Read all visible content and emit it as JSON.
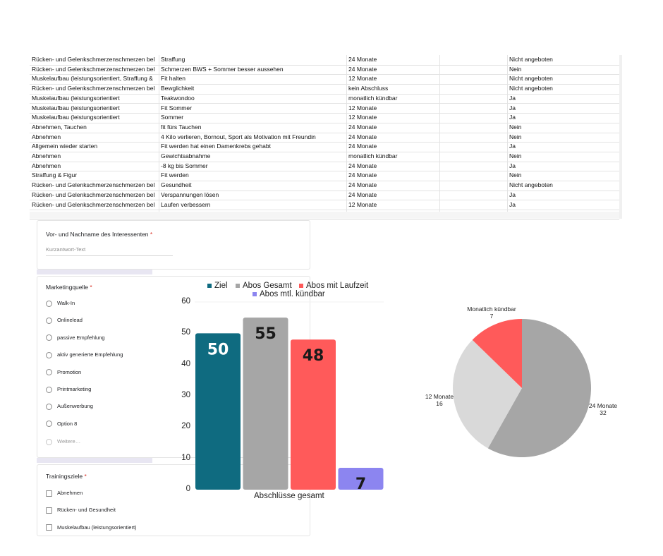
{
  "sheet": {
    "rows": [
      [
        "Rücken- und Gelenkschmerzenschmerzen bel",
        "Straffung",
        "24 Monate",
        "",
        "Nicht angeboten"
      ],
      [
        "Rücken- und Gelenkschmerzenschmerzen bel",
        "Schmerzen BWS + Sommer besser aussehen",
        "24 Monate",
        "",
        "Nein"
      ],
      [
        "Muskelaufbau (leistungsorientiert, Straffung &",
        "Fit halten",
        "12 Monate",
        "",
        "Nicht angeboten"
      ],
      [
        "Rücken- und Gelenkschmerzenschmerzen bel",
        "Bewglichkeit",
        "kein Abschluss",
        "",
        "Nicht angeboten"
      ],
      [
        "Muskelaufbau (leistungsorientiert",
        "Teakwondoo",
        "monatlich kündbar",
        "",
        "Ja"
      ],
      [
        "Muskelaufbau (leistungsorientiert",
        "Fit Sommer",
        "12 Monate",
        "",
        "Ja"
      ],
      [
        "Muskelaufbau (leistungsorientiert",
        "Sommer",
        "12 Monate",
        "",
        "Ja"
      ],
      [
        "Abnehmen, Tauchen",
        "fit fürs Tauchen",
        "24 Monate",
        "",
        "Nein"
      ],
      [
        "Abnehmen",
        "4 Kilo verlieren, Bornout, Sport als Motivation mit Freundin",
        "24 Monate",
        "",
        "Nein"
      ],
      [
        "Allgemein wieder starten",
        "Fit werden hat einen Damenkrebs gehabt",
        "24 Monate",
        "",
        "Ja"
      ],
      [
        "Abnehmen",
        "Gewichtsabnahme",
        "monatlich kündbar",
        "",
        "Nein"
      ],
      [
        "Abnehmen",
        "-8 kg bis Sommer",
        "24 Monate",
        "",
        "Ja"
      ],
      [
        "Straffung & Figur",
        "Fit werden",
        "24 Monate",
        "",
        "Nein"
      ],
      [
        "Rücken- und Gelenkschmerzenschmerzen bel",
        "Gesundheit",
        "24 Monate",
        "",
        "Nicht angeboten"
      ],
      [
        "Rücken- und Gelenkschmerzenschmerzen bel",
        "Verspannungen lösen",
        "24 Monate",
        "",
        "Ja"
      ],
      [
        "Rücken- und Gelenkschmerzenschmerzen bel",
        "Laufen verbessern",
        "12 Monate",
        "",
        "Ja"
      ]
    ]
  },
  "form": {
    "name_question": "Vor- und Nachname des Interessenten",
    "name_placeholder": "Kurzantwort-Text",
    "marketing_question": "Marketingquelle",
    "marketing_options": [
      "Walk-In",
      "Onlinelead",
      "passive Empfehlung",
      "aktiv generierte Empfehlung",
      "Promotion",
      "Printmarketing",
      "Außenwerbung",
      "Option 8"
    ],
    "marketing_more": "Weitere…",
    "training_question": "Trainingsziele",
    "training_options": [
      "Abnehmen",
      "Rücken- und Gesundheit",
      "Muskelaufbau (leistungsorientiert)"
    ],
    "required_mark": "*"
  },
  "chart_data": [
    {
      "type": "bar",
      "categories": [
        "Abschlüsse gesamt"
      ],
      "series": [
        {
          "name": "Ziel",
          "values": [
            50
          ],
          "color": "#0f6b80"
        },
        {
          "name": "Abos Gesamt",
          "values": [
            55
          ],
          "color": "#a6a6a6"
        },
        {
          "name": "Abos mit Laufzeit",
          "values": [
            48
          ],
          "color": "#ff5a5a"
        },
        {
          "name": "Abos mtl. kündbar",
          "values": [
            7
          ],
          "color": "#8c85f0"
        }
      ],
      "ylim": [
        0,
        60
      ],
      "yticks": [
        0,
        10,
        20,
        30,
        40,
        50,
        60
      ],
      "xlabel": "Abschlüsse gesamt",
      "legend": "top",
      "grid": false,
      "data_labels": true
    },
    {
      "type": "pie",
      "slices": [
        {
          "label": "24 Monate",
          "value": 32,
          "color": "#a6a6a6"
        },
        {
          "label": "12 Monate",
          "value": 16,
          "color": "#d9d9d9"
        },
        {
          "label": "Monatlich kündbar",
          "value": 7,
          "color": "#ff5a5a"
        }
      ]
    }
  ]
}
